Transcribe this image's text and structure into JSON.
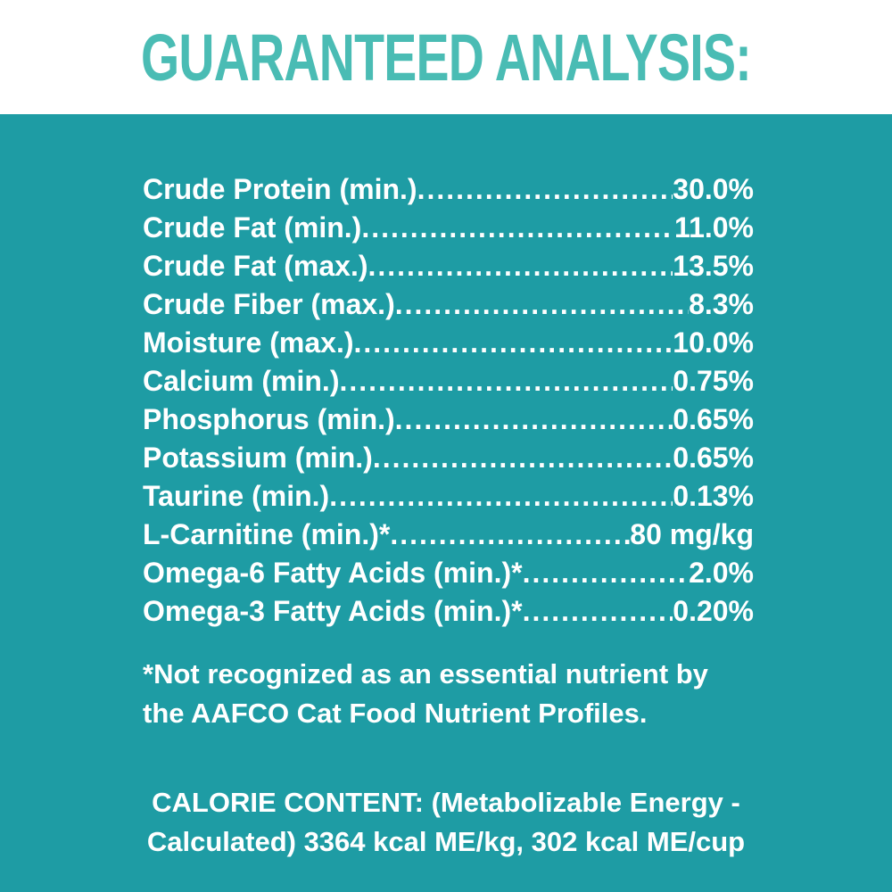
{
  "colors": {
    "panel_background": "#1E9CA4",
    "header_background": "#FFFFFF",
    "header_text": "#4ABCB4",
    "body_text": "#FFFFFF"
  },
  "header": {
    "title": "GUARANTEED ANALYSIS:"
  },
  "analysis_table": {
    "rows": [
      {
        "label": "Crude Protein (min.)",
        "value": "30.0%"
      },
      {
        "label": "Crude Fat (min.)",
        "value": "11.0%"
      },
      {
        "label": "Crude Fat (max.)",
        "value": "13.5%"
      },
      {
        "label": "Crude Fiber (max.)",
        "value": "8.3%"
      },
      {
        "label": "Moisture (max.)",
        "value": "10.0%"
      },
      {
        "label": "Calcium (min.)",
        "value": "0.75%"
      },
      {
        "label": "Phosphorus (min.)",
        "value": "0.65%"
      },
      {
        "label": "Potassium (min.)",
        "value": "0.65%"
      },
      {
        "label": "Taurine (min.)",
        "value": "0.13%"
      },
      {
        "label": "L-Carnitine (min.)*",
        "value": "80 mg/kg"
      },
      {
        "label": "Omega-6 Fatty Acids (min.)*",
        "value": "2.0%"
      },
      {
        "label": "Omega-3 Fatty Acids (min.)*",
        "value": "0.20%"
      }
    ]
  },
  "footnote": {
    "lines": [
      "*Not recognized as an essential nutrient by",
      "the AAFCO Cat Food Nutrient Profiles."
    ]
  },
  "calorie_content": {
    "lines": [
      "CALORIE CONTENT: (Metabolizable Energy -",
      "Calculated) 3364 kcal ME/kg, 302 kcal ME/cup"
    ]
  }
}
